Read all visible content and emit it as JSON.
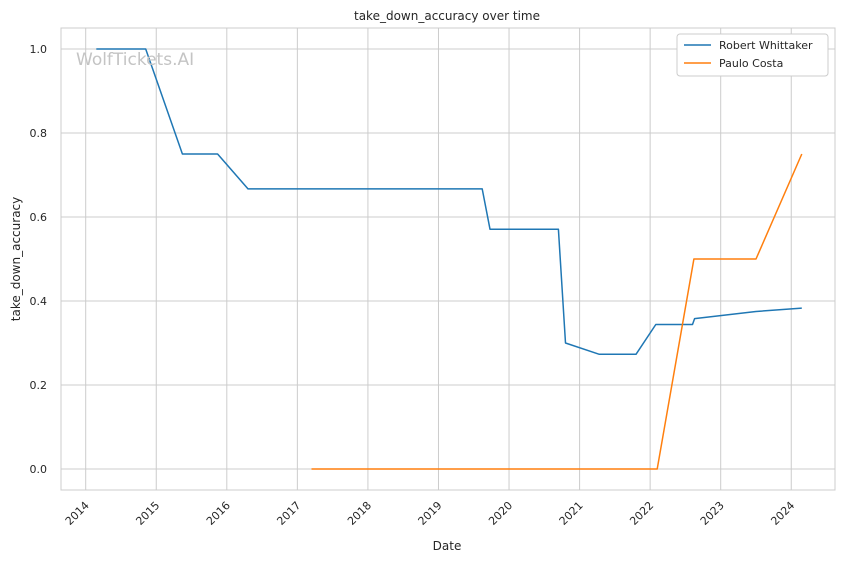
{
  "chart_data": {
    "type": "line",
    "title": "take_down_accuracy over time",
    "xlabel": "Date",
    "ylabel": "take_down_accuracy",
    "watermark": "WolfTickets.AI",
    "xlim": [
      2013.65,
      2024.62
    ],
    "ylim": [
      -0.05,
      1.05
    ],
    "x_ticks": [
      2014,
      2015,
      2016,
      2017,
      2018,
      2019,
      2020,
      2021,
      2022,
      2023,
      2024
    ],
    "x_tick_labels": [
      "2014",
      "2015",
      "2016",
      "2017",
      "2018",
      "2019",
      "2020",
      "2021",
      "2022",
      "2023",
      "2024"
    ],
    "y_ticks": [
      0.0,
      0.2,
      0.4,
      0.6,
      0.8,
      1.0
    ],
    "y_tick_labels": [
      "0.0",
      "0.2",
      "0.4",
      "0.6",
      "0.8",
      "1.0"
    ],
    "grid": true,
    "legend_position": "top-right",
    "series": [
      {
        "name": "Robert Whittaker",
        "color": "#1f77b4",
        "points": [
          [
            2014.15,
            1.0
          ],
          [
            2014.85,
            1.0
          ],
          [
            2015.37,
            0.75
          ],
          [
            2015.87,
            0.75
          ],
          [
            2016.3,
            0.667
          ],
          [
            2019.62,
            0.667
          ],
          [
            2019.73,
            0.571
          ],
          [
            2020.7,
            0.571
          ],
          [
            2020.8,
            0.3
          ],
          [
            2021.28,
            0.273
          ],
          [
            2021.8,
            0.273
          ],
          [
            2022.08,
            0.344
          ],
          [
            2022.6,
            0.344
          ],
          [
            2022.63,
            0.358
          ],
          [
            2023.5,
            0.375
          ],
          [
            2024.15,
            0.383
          ]
        ]
      },
      {
        "name": "Paulo Costa",
        "color": "#ff7f0e",
        "points": [
          [
            2017.2,
            0.0
          ],
          [
            2022.1,
            0.0
          ],
          [
            2022.62,
            0.5
          ],
          [
            2023.5,
            0.5
          ],
          [
            2024.15,
            0.75
          ]
        ]
      }
    ]
  }
}
